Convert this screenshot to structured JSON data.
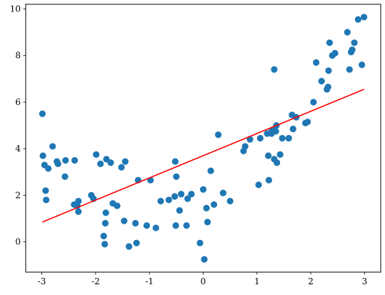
{
  "chart_data": {
    "type": "scatter",
    "title": "",
    "xlabel": "",
    "ylabel": "",
    "xlim": [
      -3.3,
      3.3
    ],
    "ylim": [
      -1.3,
      10.2
    ],
    "grid": false,
    "x_ticks": [
      -3,
      -2,
      -1,
      0,
      1,
      2,
      3
    ],
    "x_tick_labels": [
      "-3",
      "-2",
      "-1",
      "0",
      "1",
      "2",
      "3"
    ],
    "y_ticks": [
      0,
      2,
      4,
      6,
      8,
      10
    ],
    "y_tick_labels": [
      "0",
      "2",
      "4",
      "6",
      "8",
      "10"
    ],
    "series": [
      {
        "kind": "scatter",
        "color": "#1f77b4",
        "points": [
          [
            -2.99,
            5.5
          ],
          [
            -2.98,
            3.7
          ],
          [
            -2.95,
            3.3
          ],
          [
            -2.93,
            2.2
          ],
          [
            -2.92,
            1.8
          ],
          [
            -2.88,
            3.15
          ],
          [
            -2.8,
            4.1
          ],
          [
            -2.72,
            3.45
          ],
          [
            -2.7,
            3.35
          ],
          [
            -2.57,
            2.8
          ],
          [
            -2.56,
            3.5
          ],
          [
            -2.4,
            1.6
          ],
          [
            -2.39,
            3.5
          ],
          [
            -2.34,
            1.55
          ],
          [
            -2.32,
            1.75
          ],
          [
            -2.32,
            1.3
          ],
          [
            -2.08,
            2.0
          ],
          [
            -2.04,
            1.85
          ],
          [
            -1.99,
            3.75
          ],
          [
            -1.91,
            3.35
          ],
          [
            -1.85,
            0.25
          ],
          [
            -1.83,
            -0.1
          ],
          [
            -1.82,
            0.8
          ],
          [
            -1.81,
            1.25
          ],
          [
            -1.8,
            3.55
          ],
          [
            -1.72,
            3.4
          ],
          [
            -1.68,
            1.65
          ],
          [
            -1.6,
            1.55
          ],
          [
            -1.52,
            3.2
          ],
          [
            -1.47,
            0.9
          ],
          [
            -1.45,
            3.45
          ],
          [
            -1.38,
            -0.2
          ],
          [
            -1.26,
            0.8
          ],
          [
            -1.24,
            -0.05
          ],
          [
            -1.21,
            2.65
          ],
          [
            -1.05,
            0.7
          ],
          [
            -0.98,
            2.65
          ],
          [
            -0.88,
            0.6
          ],
          [
            -0.79,
            1.75
          ],
          [
            -0.64,
            1.8
          ],
          [
            -0.53,
            1.95
          ],
          [
            -0.52,
            3.45
          ],
          [
            -0.51,
            0.7
          ],
          [
            -0.5,
            2.8
          ],
          [
            -0.44,
            1.35
          ],
          [
            -0.41,
            2.05
          ],
          [
            -0.31,
            0.7
          ],
          [
            -0.29,
            1.85
          ],
          [
            -0.22,
            2.05
          ],
          [
            -0.06,
            -0.05
          ],
          [
            0.0,
            2.25
          ],
          [
            0.02,
            -0.75
          ],
          [
            0.06,
            1.45
          ],
          [
            0.08,
            0.85
          ],
          [
            0.14,
            3.05
          ],
          [
            0.2,
            1.6
          ],
          [
            0.28,
            4.6
          ],
          [
            0.37,
            2.1
          ],
          [
            0.5,
            1.75
          ],
          [
            0.75,
            3.9
          ],
          [
            0.78,
            4.1
          ],
          [
            0.87,
            4.4
          ],
          [
            1.03,
            2.45
          ],
          [
            1.06,
            4.45
          ],
          [
            1.19,
            4.65
          ],
          [
            1.21,
            3.7
          ],
          [
            1.22,
            2.65
          ],
          [
            1.27,
            4.65
          ],
          [
            1.28,
            4.8
          ],
          [
            1.32,
            3.55
          ],
          [
            1.32,
            7.4
          ],
          [
            1.35,
            4.75
          ],
          [
            1.36,
            5.0
          ],
          [
            1.37,
            3.4
          ],
          [
            1.43,
            3.75
          ],
          [
            1.47,
            4.45
          ],
          [
            1.59,
            4.45
          ],
          [
            1.65,
            5.45
          ],
          [
            1.67,
            4.85
          ],
          [
            1.73,
            5.35
          ],
          [
            1.9,
            5.1
          ],
          [
            1.94,
            5.15
          ],
          [
            2.05,
            6.0
          ],
          [
            2.1,
            7.7
          ],
          [
            2.2,
            6.9
          ],
          [
            2.3,
            6.55
          ],
          [
            2.32,
            6.65
          ],
          [
            2.33,
            7.35
          ],
          [
            2.35,
            8.55
          ],
          [
            2.4,
            8.0
          ],
          [
            2.45,
            8.1
          ],
          [
            2.68,
            9.0
          ],
          [
            2.72,
            7.4
          ],
          [
            2.75,
            8.15
          ],
          [
            2.77,
            8.25
          ],
          [
            2.81,
            8.55
          ],
          [
            2.88,
            9.55
          ],
          [
            2.95,
            7.6
          ],
          [
            2.99,
            9.65
          ]
        ]
      },
      {
        "kind": "line",
        "color": "#ff0000",
        "points": [
          [
            -2.99,
            0.85
          ],
          [
            2.99,
            6.55
          ]
        ]
      }
    ]
  }
}
